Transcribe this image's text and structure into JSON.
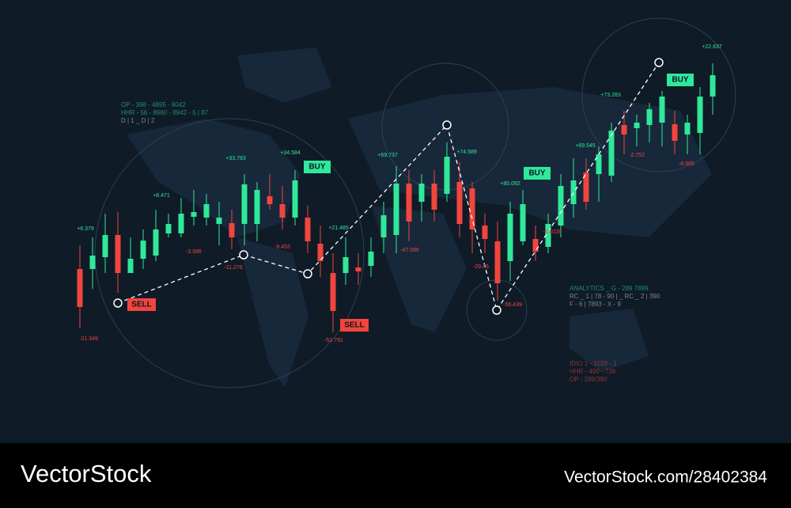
{
  "labels": [
    "+6.379",
    "-21.349",
    "+8.471",
    "-3.586",
    "+33.783",
    "-11.276",
    "+34.584",
    "-9.453",
    "+21.485",
    "-52.791",
    "+69.737",
    "-47.086",
    "+74.589",
    "-29.46",
    "-56.439",
    "+80.092",
    "-36.028",
    "+69.545",
    "+73.283",
    "-2.752",
    "-6.985",
    "+22.637"
  ],
  "badges": [
    "SELL",
    "SELL",
    "BUY",
    "BUY",
    "BUY"
  ],
  "info_left": [
    "OP - 398 - 4895 - 9042",
    "HHR - 56 - 8960 - 8942 - 5 | 87",
    "D | 1 _ D | 2"
  ],
  "info_right": [
    "ANALYTICS _ G - 289 7899",
    "RC _ 1 | 78 - 90 | _ RC _ 2 | 390",
    "F - 6 | 7893 - X - 9"
  ],
  "info_bottom": [
    "IDIO 1 - 1029 - 1",
    "HHR - 490 - 738",
    "OP - 289/390"
  ],
  "footer": {
    "brand": "VectorStock",
    "url": "VectorStock.com/28402384"
  }
}
